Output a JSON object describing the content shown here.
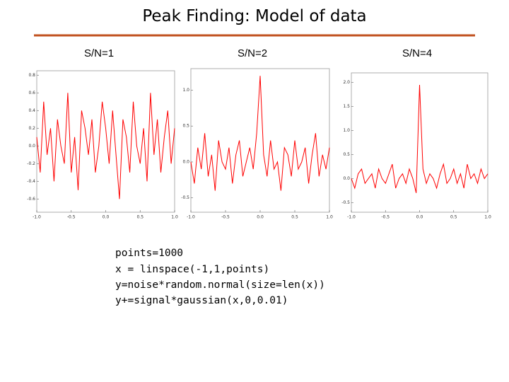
{
  "header": {
    "title": "Peak Finding: Model of data"
  },
  "chart_data": [
    {
      "type": "line",
      "title": "S/N=1",
      "color": "#ff0000",
      "x": [
        -1.0,
        -0.95,
        -0.9,
        -0.85,
        -0.8,
        -0.75,
        -0.7,
        -0.65,
        -0.6,
        -0.55,
        -0.5,
        -0.45,
        -0.4,
        -0.35,
        -0.3,
        -0.25,
        -0.2,
        -0.15,
        -0.1,
        -0.05,
        0.0,
        0.05,
        0.1,
        0.15,
        0.2,
        0.25,
        0.3,
        0.35,
        0.4,
        0.45,
        0.5,
        0.55,
        0.6,
        0.65,
        0.7,
        0.75,
        0.8,
        0.85,
        0.9,
        0.95,
        1.0
      ],
      "values": [
        0.1,
        -0.3,
        0.5,
        -0.1,
        0.2,
        -0.4,
        0.3,
        0.0,
        -0.2,
        0.6,
        -0.3,
        0.1,
        -0.5,
        0.4,
        0.2,
        -0.1,
        0.3,
        -0.3,
        0.0,
        0.5,
        0.2,
        -0.2,
        0.4,
        -0.1,
        -0.6,
        0.3,
        0.1,
        -0.3,
        0.5,
        0.0,
        -0.2,
        0.2,
        -0.4,
        0.6,
        -0.1,
        0.3,
        -0.3,
        0.1,
        0.4,
        -0.2,
        0.2
      ],
      "xlim": [
        -1,
        1
      ],
      "ylim": [
        -0.75,
        0.85
      ],
      "xticks": [
        {
          "value": -1,
          "label": "-1.0"
        },
        {
          "value": -0.5,
          "label": "-0.5"
        },
        {
          "value": 0,
          "label": "0.0"
        },
        {
          "value": 0.5,
          "label": "0.5"
        },
        {
          "value": 1,
          "label": "1.0"
        }
      ],
      "yticks": [
        {
          "value": 0.8,
          "label": "0.8"
        },
        {
          "value": 0.6,
          "label": "0.6"
        },
        {
          "value": 0.4,
          "label": "0.4"
        },
        {
          "value": 0.2,
          "label": "0.2"
        },
        {
          "value": 0,
          "label": "0.0"
        },
        {
          "value": -0.2,
          "label": "-0.2"
        },
        {
          "value": -0.4,
          "label": "-0.4"
        },
        {
          "value": -0.6,
          "label": "-0.6"
        }
      ]
    },
    {
      "type": "line",
      "title": "S/N=2",
      "color": "#ff0000",
      "x": [
        -1.0,
        -0.95,
        -0.9,
        -0.85,
        -0.8,
        -0.75,
        -0.7,
        -0.65,
        -0.6,
        -0.55,
        -0.5,
        -0.45,
        -0.4,
        -0.35,
        -0.3,
        -0.25,
        -0.2,
        -0.15,
        -0.1,
        -0.05,
        0.0,
        0.05,
        0.1,
        0.15,
        0.2,
        0.25,
        0.3,
        0.35,
        0.4,
        0.45,
        0.5,
        0.55,
        0.6,
        0.65,
        0.7,
        0.75,
        0.8,
        0.85,
        0.9,
        0.95,
        1.0
      ],
      "values": [
        0.0,
        -0.3,
        0.2,
        -0.1,
        0.4,
        -0.2,
        0.1,
        -0.4,
        0.3,
        0.0,
        -0.1,
        0.2,
        -0.3,
        0.1,
        0.3,
        -0.2,
        0.0,
        0.2,
        -0.1,
        0.4,
        1.2,
        0.1,
        -0.2,
        0.3,
        -0.1,
        0.0,
        -0.4,
        0.2,
        0.1,
        -0.2,
        0.3,
        -0.1,
        0.0,
        0.2,
        -0.3,
        0.1,
        0.4,
        -0.2,
        0.1,
        -0.1,
        0.2
      ],
      "xlim": [
        -1,
        1
      ],
      "ylim": [
        -0.7,
        1.3
      ],
      "xticks": [
        {
          "value": -1,
          "label": "-1.0"
        },
        {
          "value": -0.5,
          "label": "-0.5"
        },
        {
          "value": 0,
          "label": "0.0"
        },
        {
          "value": 0.5,
          "label": "0.5"
        },
        {
          "value": 1,
          "label": "1.0"
        }
      ],
      "yticks": [
        {
          "value": 1,
          "label": "1.0"
        },
        0.5,
        {
          "value": 0,
          "label": "0.0"
        },
        -0.5
      ]
    },
    {
      "type": "line",
      "title": "S/N=4",
      "color": "#ff0000",
      "x": [
        -1.0,
        -0.95,
        -0.9,
        -0.85,
        -0.8,
        -0.75,
        -0.7,
        -0.65,
        -0.6,
        -0.55,
        -0.5,
        -0.45,
        -0.4,
        -0.35,
        -0.3,
        -0.25,
        -0.2,
        -0.15,
        -0.1,
        -0.05,
        0.0,
        0.05,
        0.1,
        0.15,
        0.2,
        0.25,
        0.3,
        0.35,
        0.4,
        0.45,
        0.5,
        0.55,
        0.6,
        0.65,
        0.7,
        0.75,
        0.8,
        0.85,
        0.9,
        0.95,
        1.0
      ],
      "values": [
        0.0,
        -0.2,
        0.1,
        0.2,
        -0.1,
        0.0,
        0.1,
        -0.2,
        0.2,
        0.0,
        -0.1,
        0.1,
        0.3,
        -0.2,
        0.0,
        0.1,
        -0.1,
        0.2,
        0.0,
        -0.3,
        1.95,
        0.2,
        -0.1,
        0.1,
        0.0,
        -0.2,
        0.1,
        0.3,
        -0.1,
        0.0,
        0.2,
        -0.1,
        0.1,
        -0.2,
        0.3,
        0.0,
        0.1,
        -0.1,
        0.2,
        0.0,
        0.1
      ],
      "xlim": [
        -1,
        1
      ],
      "ylim": [
        -0.7,
        2.2
      ],
      "xticks": [
        {
          "value": -1,
          "label": "-1.0"
        },
        {
          "value": -0.5,
          "label": "-0.5"
        },
        {
          "value": 0,
          "label": "0.0"
        },
        {
          "value": 0.5,
          "label": "0.5"
        },
        {
          "value": 1,
          "label": "1.0"
        }
      ],
      "yticks": [
        {
          "value": 2,
          "label": "2.0"
        },
        1.5,
        {
          "value": 1,
          "label": "1.0"
        },
        0.5,
        {
          "value": 0,
          "label": "0.0"
        },
        -0.5
      ]
    }
  ],
  "code": [
    "points=1000",
    "x = linspace(-1,1,points)",
    "y=noise*random.normal(size=len(x))",
    "y+=signal*gaussian(x,0,0.01)"
  ]
}
